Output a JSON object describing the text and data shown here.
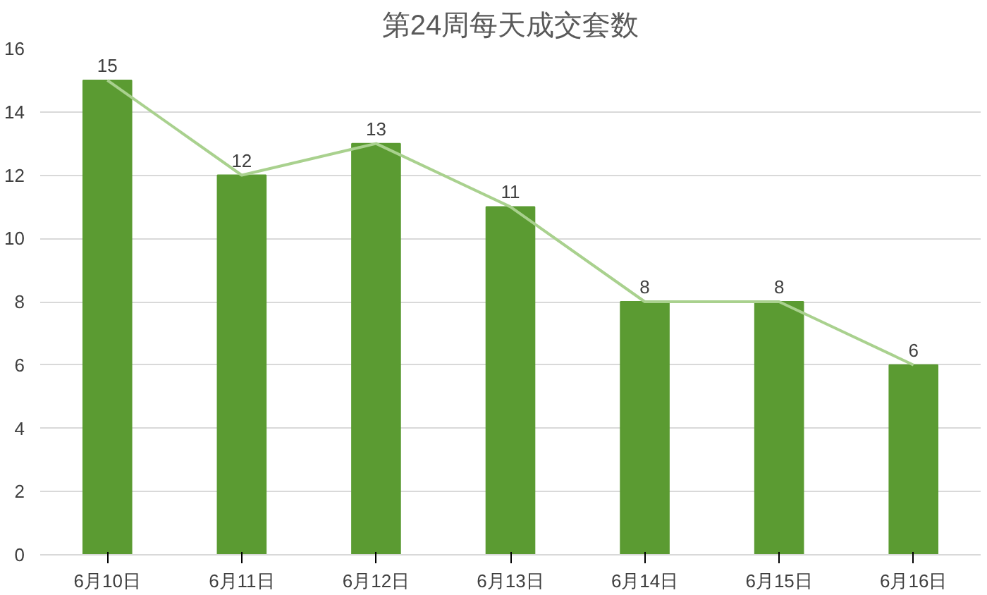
{
  "chart_data": {
    "type": "bar",
    "title": "第24周每天成交套数",
    "categories": [
      "6月10日",
      "6月11日",
      "6月12日",
      "6月13日",
      "6月14日",
      "6月15日",
      "6月16日"
    ],
    "series": [
      {
        "color": "#5b9b32",
        "values": [
          15,
          12,
          13,
          11,
          8,
          8,
          6
        ],
        "value_labels": [
          "15",
          "12",
          "13",
          "11",
          "8",
          "8",
          "6"
        ]
      },
      {
        "type": "line",
        "color": "#a9d18e",
        "values": [
          15,
          12,
          13,
          11,
          8,
          8,
          6
        ]
      }
    ],
    "ylim": [
      0,
      16
    ],
    "yticks": [
      0,
      2,
      4,
      6,
      8,
      10,
      12,
      14,
      16
    ],
    "grid": "y"
  }
}
